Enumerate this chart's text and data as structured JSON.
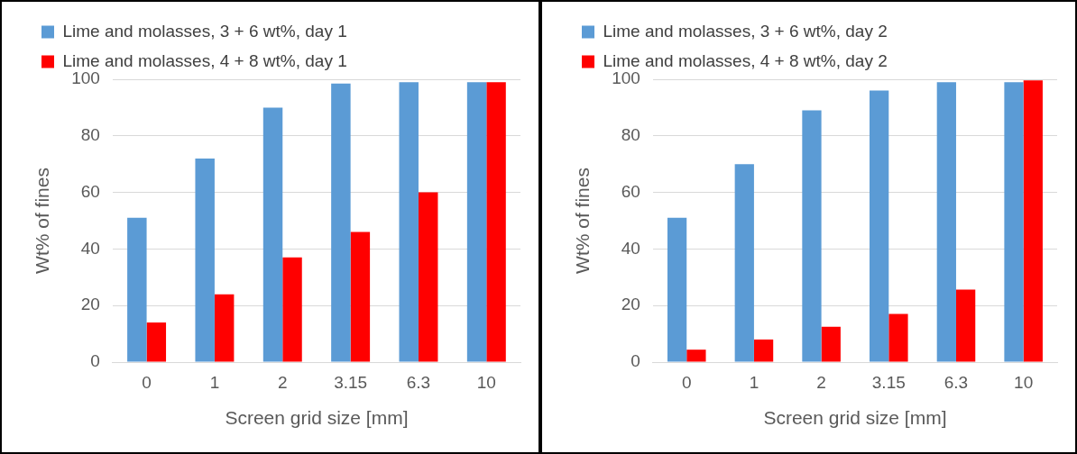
{
  "chart_data": [
    {
      "type": "bar",
      "xlabel": "Screen grid size [mm]",
      "ylabel": "Wt% of fines",
      "categories": [
        "0",
        "1",
        "2",
        "3.15",
        "6.3",
        "10"
      ],
      "series": [
        {
          "name": "Lime and molasses, 3 + 6 wt%, day 1",
          "color": "#5b9bd5",
          "values": [
            51,
            72,
            90,
            98.5,
            99,
            99
          ]
        },
        {
          "name": "Lime and molasses, 4 + 8 wt%, day 1",
          "color": "#ff0000",
          "values": [
            14,
            24,
            37,
            46,
            60,
            99
          ]
        }
      ],
      "ylim": [
        0,
        100
      ],
      "yticks": [
        0,
        20,
        40,
        60,
        80,
        100
      ],
      "grid": "y",
      "legend": "top"
    },
    {
      "type": "bar",
      "xlabel": "Screen grid size [mm]",
      "ylabel": "Wt% of fines",
      "categories": [
        "0",
        "1",
        "2",
        "3.15",
        "6.3",
        "10"
      ],
      "series": [
        {
          "name": "Lime and molasses, 3 + 6 wt%, day 2",
          "color": "#5b9bd5",
          "values": [
            51,
            70,
            89,
            96,
            99,
            99
          ]
        },
        {
          "name": "Lime and molasses, 4 + 8 wt%, day 2",
          "color": "#ff0000",
          "values": [
            4.4,
            8,
            12.5,
            17,
            25.6,
            99.6
          ]
        }
      ],
      "ylim": [
        0,
        100
      ],
      "yticks": [
        0,
        20,
        40,
        60,
        80,
        100
      ],
      "grid": "y",
      "legend": "top"
    }
  ]
}
